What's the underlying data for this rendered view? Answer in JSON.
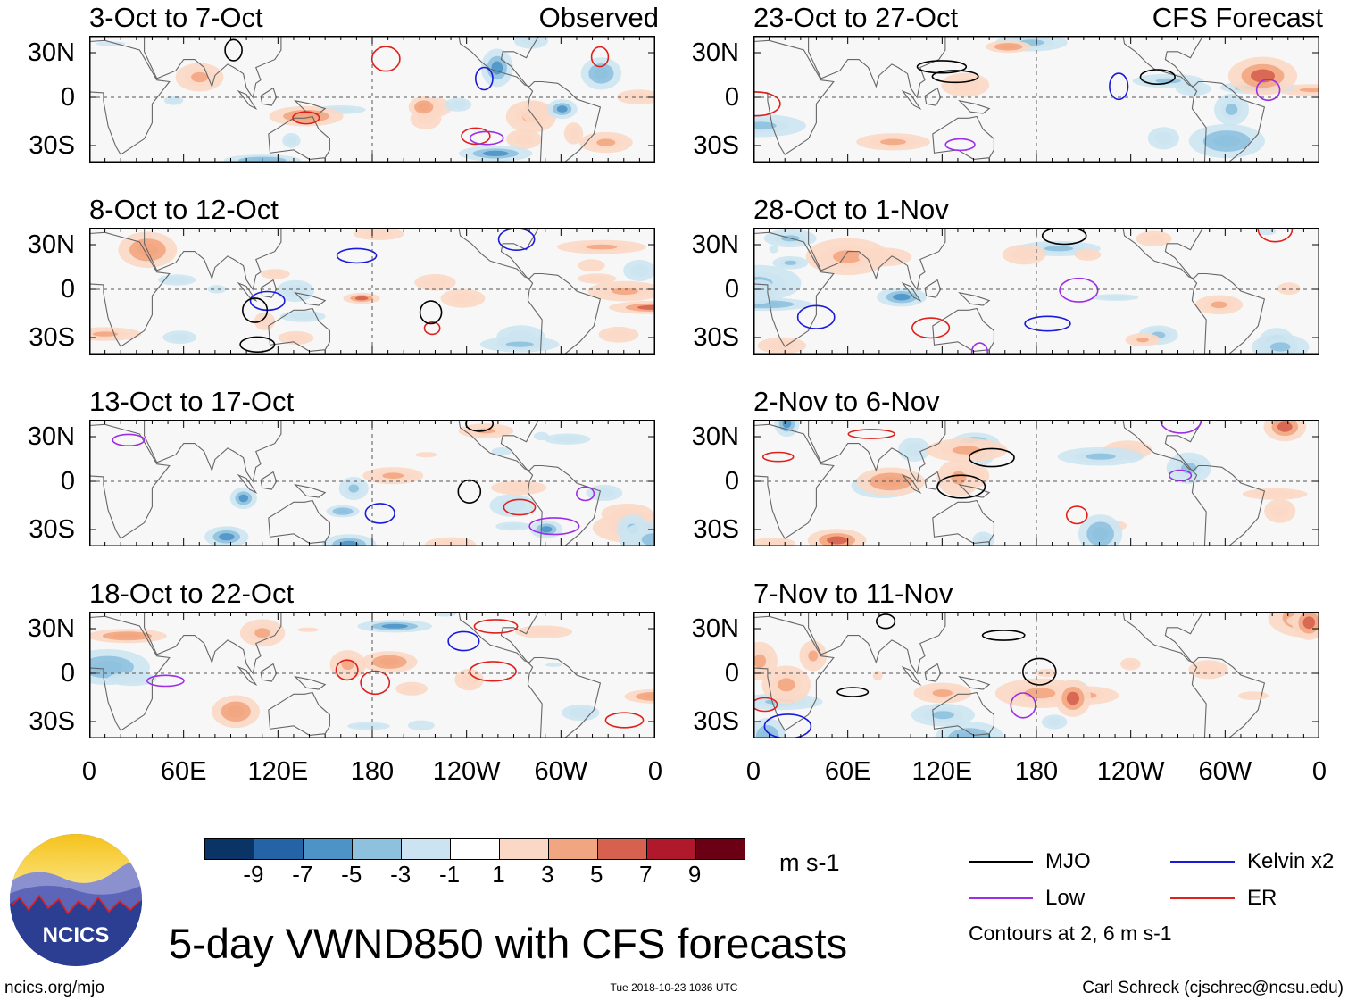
{
  "chart_data": {
    "type": "heatmap",
    "title": "5-day VWND850 with CFS forecasts",
    "variable": "850-hPa meridional wind anomaly",
    "units": "m s-1",
    "lat_ticks": [
      "30N",
      "0",
      "30S"
    ],
    "lon_ticks": [
      "0",
      "60E",
      "120E",
      "180",
      "120W",
      "60W",
      "0"
    ],
    "colorbar": {
      "levels": [
        -9,
        -7,
        -5,
        -3,
        -1,
        1,
        3,
        5,
        7,
        9
      ],
      "colors": [
        "#0a3466",
        "#2463a6",
        "#4d93c8",
        "#8ec1de",
        "#cce4f1",
        "#ffffff",
        "#fbd8c5",
        "#f2a581",
        "#d6614f",
        "#b0192b",
        "#6b0015"
      ]
    },
    "legend": {
      "items": [
        {
          "label": "MJO",
          "color": "#000000"
        },
        {
          "label": "Kelvin x2",
          "color": "#1a1adb"
        },
        {
          "label": "Low",
          "color": "#9d2de6"
        },
        {
          "label": "ER",
          "color": "#e0201c"
        }
      ],
      "note": "Contours at 2, 6 m s-1"
    },
    "panels": [
      {
        "period": "3-Oct to 7-Oct",
        "source": "Observed",
        "column": "left",
        "row": 0,
        "seed": 11
      },
      {
        "period": "8-Oct to 12-Oct",
        "source": "",
        "column": "left",
        "row": 1,
        "seed": 23
      },
      {
        "period": "13-Oct to 17-Oct",
        "source": "",
        "column": "left",
        "row": 2,
        "seed": 37
      },
      {
        "period": "18-Oct to 22-Oct",
        "source": "",
        "column": "left",
        "row": 3,
        "seed": 41
      },
      {
        "period": "23-Oct to 27-Oct",
        "source": "CFS Forecast",
        "column": "right",
        "row": 0,
        "seed": 53
      },
      {
        "period": "28-Oct to 1-Nov",
        "source": "",
        "column": "right",
        "row": 1,
        "seed": 67
      },
      {
        "period": "2-Nov to 6-Nov",
        "source": "",
        "column": "right",
        "row": 2,
        "seed": 71
      },
      {
        "period": "7-Nov to 11-Nov",
        "source": "",
        "column": "right",
        "row": 3,
        "seed": 89
      }
    ]
  },
  "logo": {
    "text": "NCICS"
  },
  "footer": {
    "url": "ncics.org/mjo",
    "timestamp": "Tue 2018-10-23 1036 UTC",
    "credit": "Carl Schreck (cjschrec@ncsu.edu)"
  }
}
